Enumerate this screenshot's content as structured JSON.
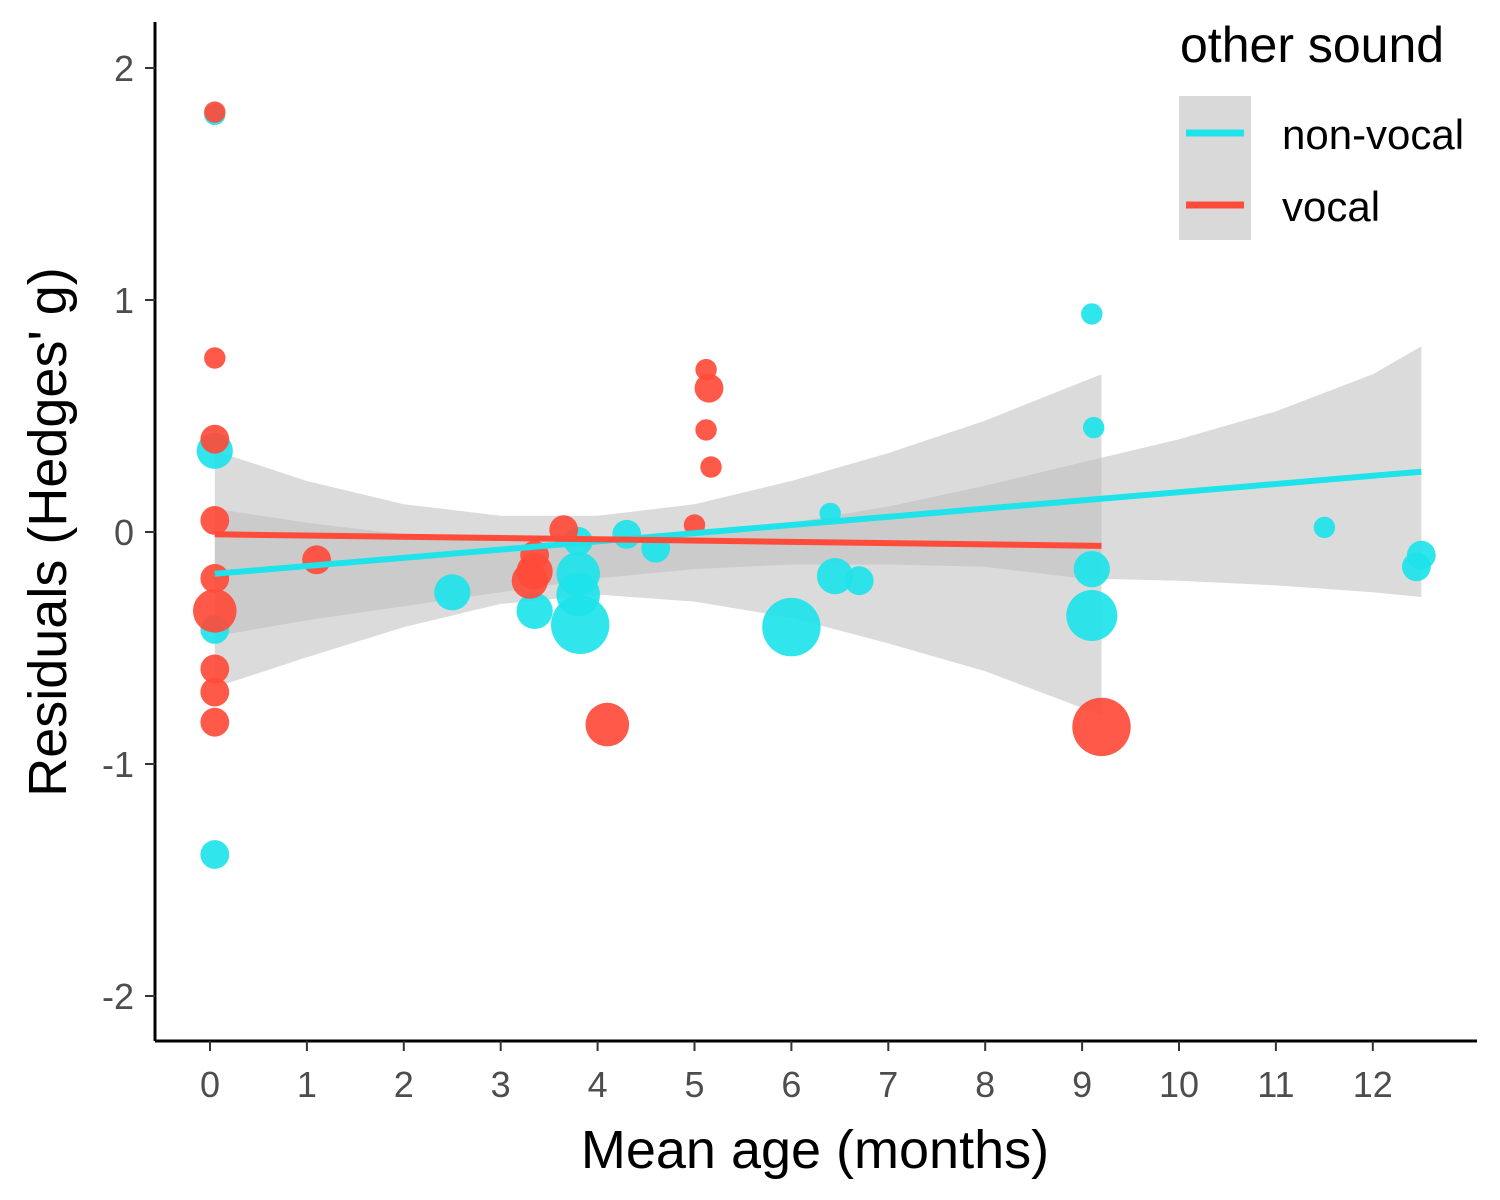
{
  "chart_data": {
    "type": "scatter",
    "xlabel": "Mean age (months)",
    "ylabel": "Residuals (Hedges' g)",
    "xlim": [
      -0.55,
      13.1
    ],
    "ylim": [
      -2.2,
      2.2
    ],
    "x_ticks": [
      0,
      1,
      2,
      3,
      4,
      5,
      6,
      7,
      8,
      9,
      10,
      11,
      12
    ],
    "y_ticks": [
      2,
      1,
      0,
      -1,
      -2
    ],
    "y_tick_labels": [
      "2",
      "1",
      "0",
      "-1",
      "-2"
    ],
    "grid": false,
    "legend": {
      "title": "other sound",
      "placement": "top-right",
      "entries": [
        {
          "label": "non-vocal",
          "color": "#1ee3ea"
        },
        {
          "label": "vocal",
          "color": "#ff4b3a"
        }
      ]
    },
    "colors": {
      "non_vocal": "#1ee3ea",
      "vocal": "#ff4b3a",
      "ribbon": "#bdbdbd"
    },
    "series": [
      {
        "name": "non-vocal",
        "color": "#1ee3ea",
        "points": [
          {
            "x": 0.05,
            "y": 1.8,
            "size": 1
          },
          {
            "x": 0.05,
            "y": 0.35,
            "size": 3
          },
          {
            "x": 0.05,
            "y": -0.42,
            "size": 2
          },
          {
            "x": 0.05,
            "y": -1.39,
            "size": 2
          },
          {
            "x": 2.5,
            "y": -0.26,
            "size": 3
          },
          {
            "x": 3.35,
            "y": -0.34,
            "size": 3
          },
          {
            "x": 3.8,
            "y": -0.04,
            "size": 2
          },
          {
            "x": 3.8,
            "y": -0.18,
            "size": 4
          },
          {
            "x": 3.8,
            "y": -0.27,
            "size": 4
          },
          {
            "x": 3.82,
            "y": -0.4,
            "size": 6
          },
          {
            "x": 4.3,
            "y": -0.01,
            "size": 2
          },
          {
            "x": 4.6,
            "y": -0.07,
            "size": 2
          },
          {
            "x": 6.0,
            "y": -0.41,
            "size": 6
          },
          {
            "x": 6.4,
            "y": 0.08,
            "size": 1
          },
          {
            "x": 6.45,
            "y": -0.19,
            "size": 3
          },
          {
            "x": 6.7,
            "y": -0.21,
            "size": 2
          },
          {
            "x": 9.1,
            "y": 0.94,
            "size": 1
          },
          {
            "x": 9.12,
            "y": 0.45,
            "size": 1
          },
          {
            "x": 9.1,
            "y": -0.16,
            "size": 3
          },
          {
            "x": 9.1,
            "y": -0.36,
            "size": 5
          },
          {
            "x": 11.5,
            "y": 0.02,
            "size": 1
          },
          {
            "x": 12.5,
            "y": -0.1,
            "size": 2
          },
          {
            "x": 12.45,
            "y": -0.15,
            "size": 2
          }
        ]
      },
      {
        "name": "vocal",
        "color": "#ff4b3a",
        "points": [
          {
            "x": 0.05,
            "y": 1.81,
            "size": 1
          },
          {
            "x": 0.05,
            "y": 0.75,
            "size": 1
          },
          {
            "x": 0.05,
            "y": 0.4,
            "size": 2
          },
          {
            "x": 0.05,
            "y": 0.05,
            "size": 2
          },
          {
            "x": 0.05,
            "y": -0.2,
            "size": 2
          },
          {
            "x": 0.05,
            "y": -0.34,
            "size": 4
          },
          {
            "x": 0.05,
            "y": -0.59,
            "size": 2
          },
          {
            "x": 0.05,
            "y": -0.69,
            "size": 2
          },
          {
            "x": 0.05,
            "y": -0.82,
            "size": 2
          },
          {
            "x": 1.1,
            "y": -0.12,
            "size": 2
          },
          {
            "x": 3.3,
            "y": -0.21,
            "size": 3
          },
          {
            "x": 3.35,
            "y": -0.17,
            "size": 3
          },
          {
            "x": 3.35,
            "y": -0.1,
            "size": 2
          },
          {
            "x": 3.65,
            "y": 0.01,
            "size": 2
          },
          {
            "x": 4.1,
            "y": -0.83,
            "size": 4
          },
          {
            "x": 5.0,
            "y": 0.03,
            "size": 1
          },
          {
            "x": 5.12,
            "y": 0.7,
            "size": 1
          },
          {
            "x": 5.15,
            "y": 0.62,
            "size": 2
          },
          {
            "x": 5.12,
            "y": 0.44,
            "size": 1
          },
          {
            "x": 5.17,
            "y": 0.28,
            "size": 1
          },
          {
            "x": 9.2,
            "y": -0.84,
            "size": 6
          }
        ]
      }
    ],
    "fits": [
      {
        "name": "non-vocal",
        "color": "#1ee3ea",
        "x": [
          0.05,
          12.5
        ],
        "y": [
          -0.18,
          0.26
        ],
        "band": {
          "x": [
            0.05,
            1,
            2,
            3,
            4,
            5,
            6,
            7,
            8,
            9,
            10,
            11,
            12,
            12.5
          ],
          "upper": [
            0.1,
            0.04,
            -0.01,
            -0.04,
            -0.04,
            -0.01,
            0.04,
            0.11,
            0.2,
            0.3,
            0.4,
            0.52,
            0.68,
            0.8
          ],
          "lower": [
            -0.45,
            -0.38,
            -0.32,
            -0.26,
            -0.2,
            -0.16,
            -0.14,
            -0.14,
            -0.15,
            -0.2,
            -0.21,
            -0.23,
            -0.26,
            -0.28
          ]
        }
      },
      {
        "name": "vocal",
        "color": "#ff4b3a",
        "x": [
          0.05,
          9.2
        ],
        "y": [
          -0.01,
          -0.06
        ],
        "band": {
          "x": [
            0.05,
            1,
            2,
            3,
            4,
            5,
            6,
            7,
            8,
            9.2
          ],
          "upper": [
            0.35,
            0.22,
            0.12,
            0.07,
            0.07,
            0.12,
            0.22,
            0.34,
            0.48,
            0.68
          ],
          "lower": [
            -0.67,
            -0.54,
            -0.41,
            -0.31,
            -0.27,
            -0.3,
            -0.37,
            -0.48,
            -0.6,
            -0.79
          ]
        }
      }
    ]
  }
}
